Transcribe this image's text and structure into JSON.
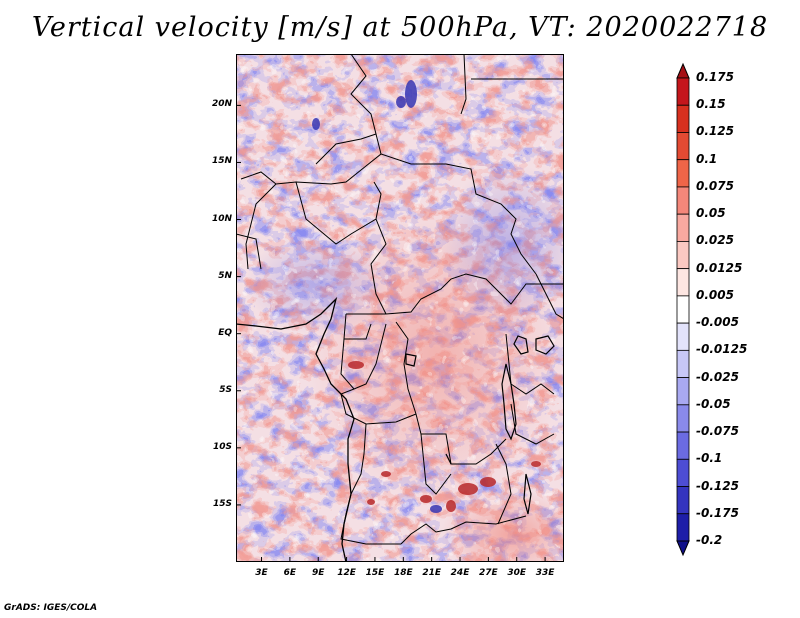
{
  "title": "Vertical velocity [m/s] at 500hPa, VT: 2020022718",
  "credit": "GrADS: IGES/COLA",
  "map": {
    "region": "Central Africa",
    "field": "vertical velocity",
    "level": "500hPa",
    "units": "m/s",
    "valid_time": "2020022718",
    "lat_labels": [
      "20N",
      "15N",
      "10N",
      "5N",
      "EQ",
      "5S",
      "10S",
      "15S"
    ],
    "lat_values": [
      20,
      15,
      10,
      5,
      0,
      -5,
      -10,
      -15
    ],
    "lon_labels": [
      "3E",
      "6E",
      "9E",
      "12E",
      "15E",
      "18E",
      "21E",
      "24E",
      "27E",
      "30E",
      "33E"
    ],
    "lon_values": [
      3,
      6,
      9,
      12,
      15,
      18,
      21,
      24,
      27,
      30,
      33
    ],
    "lat_range": [
      -20,
      24.5
    ],
    "lon_range": [
      0.3,
      35
    ]
  },
  "legend": {
    "labels": [
      "0.175",
      "0.15",
      "0.125",
      "0.1",
      "0.075",
      "0.05",
      "0.025",
      "0.0125",
      "0.005",
      "-0.005",
      "-0.0125",
      "-0.025",
      "-0.05",
      "-0.075",
      "-0.1",
      "-0.125",
      "-0.175",
      "-0.2"
    ],
    "colors": [
      "#a50f15",
      "#c4161c",
      "#d7301f",
      "#e34a33",
      "#ef6548",
      "#f4877a",
      "#f8a9a0",
      "#fbc9c2",
      "#fde6e2",
      "#ffffff",
      "#e3e3fb",
      "#c7c7f7",
      "#a9a9f1",
      "#8a8aea",
      "#6b6be2",
      "#4d4dd4",
      "#3434bf",
      "#1e1ea8",
      "#10108a"
    ]
  }
}
